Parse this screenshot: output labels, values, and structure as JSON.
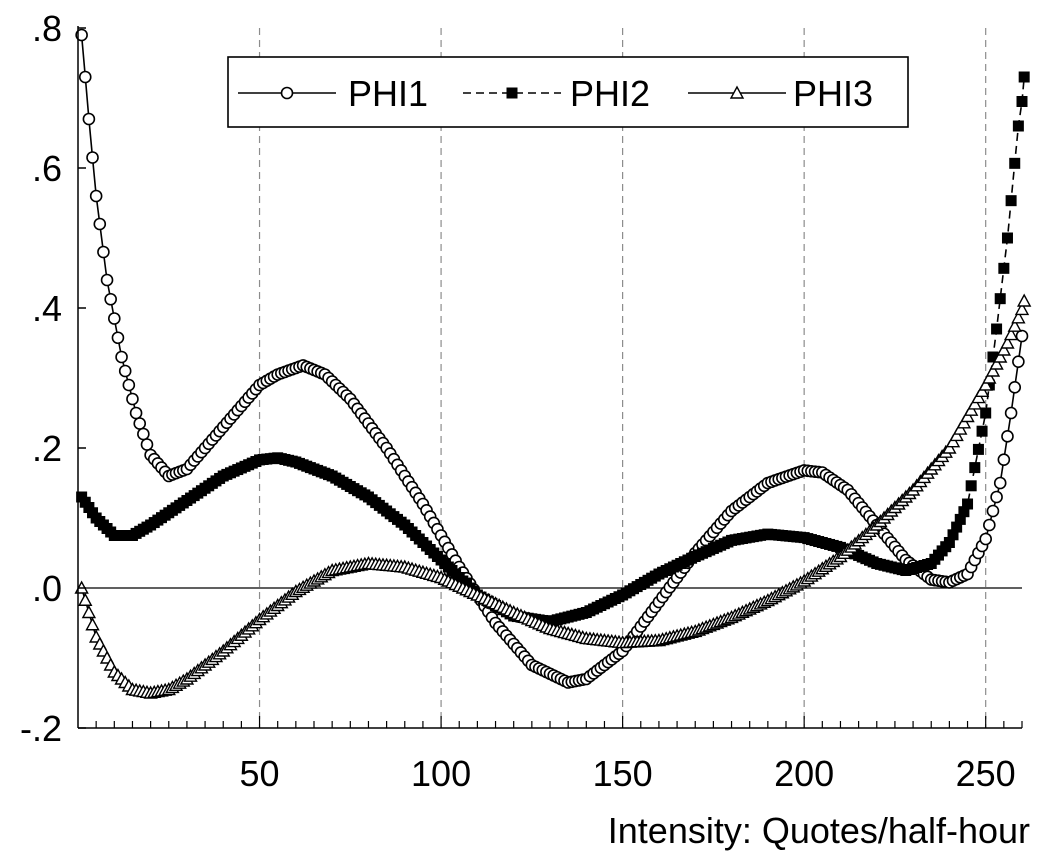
{
  "chart_data": {
    "type": "line",
    "title": "",
    "xlabel": "Intensity: Quotes/half-hour",
    "ylabel": "",
    "xlim": [
      0,
      260
    ],
    "ylim": [
      -0.2,
      0.8
    ],
    "x_ticks": [
      50,
      100,
      150,
      200,
      250
    ],
    "x_tick_labels": [
      "50",
      "100",
      "150",
      "200",
      "250"
    ],
    "y_ticks": [
      -0.2,
      0.0,
      0.2,
      0.4,
      0.6,
      0.8
    ],
    "y_tick_labels": [
      "-.2",
      ".0",
      ".2",
      ".4",
      ".6",
      ".8"
    ],
    "vertical_gridlines_at": [
      50,
      100,
      150,
      200,
      250
    ],
    "zero_line": true,
    "legend_position": "top",
    "x_range": {
      "start": 1,
      "end": 260,
      "step": 1
    },
    "series": [
      {
        "name": "PHI1",
        "marker": "open-circle",
        "line": "solid",
        "knots": [
          [
            1,
            0.79
          ],
          [
            3,
            0.67
          ],
          [
            5,
            0.56
          ],
          [
            8,
            0.44
          ],
          [
            12,
            0.33
          ],
          [
            16,
            0.25
          ],
          [
            20,
            0.19
          ],
          [
            25,
            0.16
          ],
          [
            30,
            0.17
          ],
          [
            35,
            0.2
          ],
          [
            40,
            0.23
          ],
          [
            45,
            0.26
          ],
          [
            50,
            0.29
          ],
          [
            55,
            0.305
          ],
          [
            62,
            0.318
          ],
          [
            68,
            0.305
          ],
          [
            75,
            0.27
          ],
          [
            85,
            0.2
          ],
          [
            95,
            0.12
          ],
          [
            105,
            0.03
          ],
          [
            115,
            -0.05
          ],
          [
            125,
            -0.11
          ],
          [
            135,
            -0.135
          ],
          [
            140,
            -0.13
          ],
          [
            150,
            -0.09
          ],
          [
            160,
            -0.02
          ],
          [
            170,
            0.05
          ],
          [
            180,
            0.11
          ],
          [
            190,
            0.15
          ],
          [
            200,
            0.168
          ],
          [
            205,
            0.165
          ],
          [
            212,
            0.14
          ],
          [
            220,
            0.09
          ],
          [
            228,
            0.04
          ],
          [
            235,
            0.012
          ],
          [
            240,
            0.008
          ],
          [
            245,
            0.02
          ],
          [
            250,
            0.07
          ],
          [
            254,
            0.15
          ],
          [
            257,
            0.25
          ],
          [
            260,
            0.36
          ]
        ]
      },
      {
        "name": "PHI2",
        "marker": "filled-square",
        "line": "dashed",
        "knots": [
          [
            1,
            0.13
          ],
          [
            5,
            0.1
          ],
          [
            10,
            0.075
          ],
          [
            15,
            0.075
          ],
          [
            20,
            0.09
          ],
          [
            30,
            0.125
          ],
          [
            40,
            0.16
          ],
          [
            50,
            0.183
          ],
          [
            55,
            0.186
          ],
          [
            60,
            0.18
          ],
          [
            70,
            0.16
          ],
          [
            80,
            0.13
          ],
          [
            90,
            0.09
          ],
          [
            100,
            0.04
          ],
          [
            110,
            -0.01
          ],
          [
            120,
            -0.04
          ],
          [
            130,
            -0.048
          ],
          [
            140,
            -0.035
          ],
          [
            150,
            -0.01
          ],
          [
            160,
            0.02
          ],
          [
            170,
            0.045
          ],
          [
            180,
            0.068
          ],
          [
            190,
            0.077
          ],
          [
            200,
            0.072
          ],
          [
            210,
            0.058
          ],
          [
            220,
            0.035
          ],
          [
            228,
            0.025
          ],
          [
            235,
            0.035
          ],
          [
            240,
            0.065
          ],
          [
            245,
            0.12
          ],
          [
            250,
            0.25
          ],
          [
            253,
            0.37
          ],
          [
            256,
            0.5
          ],
          [
            259,
            0.66
          ],
          [
            261,
            0.73
          ]
        ]
      },
      {
        "name": "PHI3",
        "marker": "open-triangle",
        "line": "solid",
        "knots": [
          [
            1,
            0.0
          ],
          [
            5,
            -0.07
          ],
          [
            10,
            -0.12
          ],
          [
            15,
            -0.145
          ],
          [
            20,
            -0.15
          ],
          [
            25,
            -0.145
          ],
          [
            30,
            -0.13
          ],
          [
            40,
            -0.09
          ],
          [
            50,
            -0.045
          ],
          [
            60,
            -0.005
          ],
          [
            70,
            0.025
          ],
          [
            80,
            0.035
          ],
          [
            90,
            0.03
          ],
          [
            100,
            0.015
          ],
          [
            110,
            -0.01
          ],
          [
            120,
            -0.035
          ],
          [
            130,
            -0.058
          ],
          [
            140,
            -0.072
          ],
          [
            150,
            -0.078
          ],
          [
            160,
            -0.075
          ],
          [
            170,
            -0.062
          ],
          [
            180,
            -0.042
          ],
          [
            190,
            -0.018
          ],
          [
            200,
            0.01
          ],
          [
            210,
            0.045
          ],
          [
            220,
            0.09
          ],
          [
            230,
            0.14
          ],
          [
            240,
            0.2
          ],
          [
            250,
            0.29
          ],
          [
            256,
            0.35
          ],
          [
            261,
            0.41
          ]
        ]
      }
    ]
  }
}
